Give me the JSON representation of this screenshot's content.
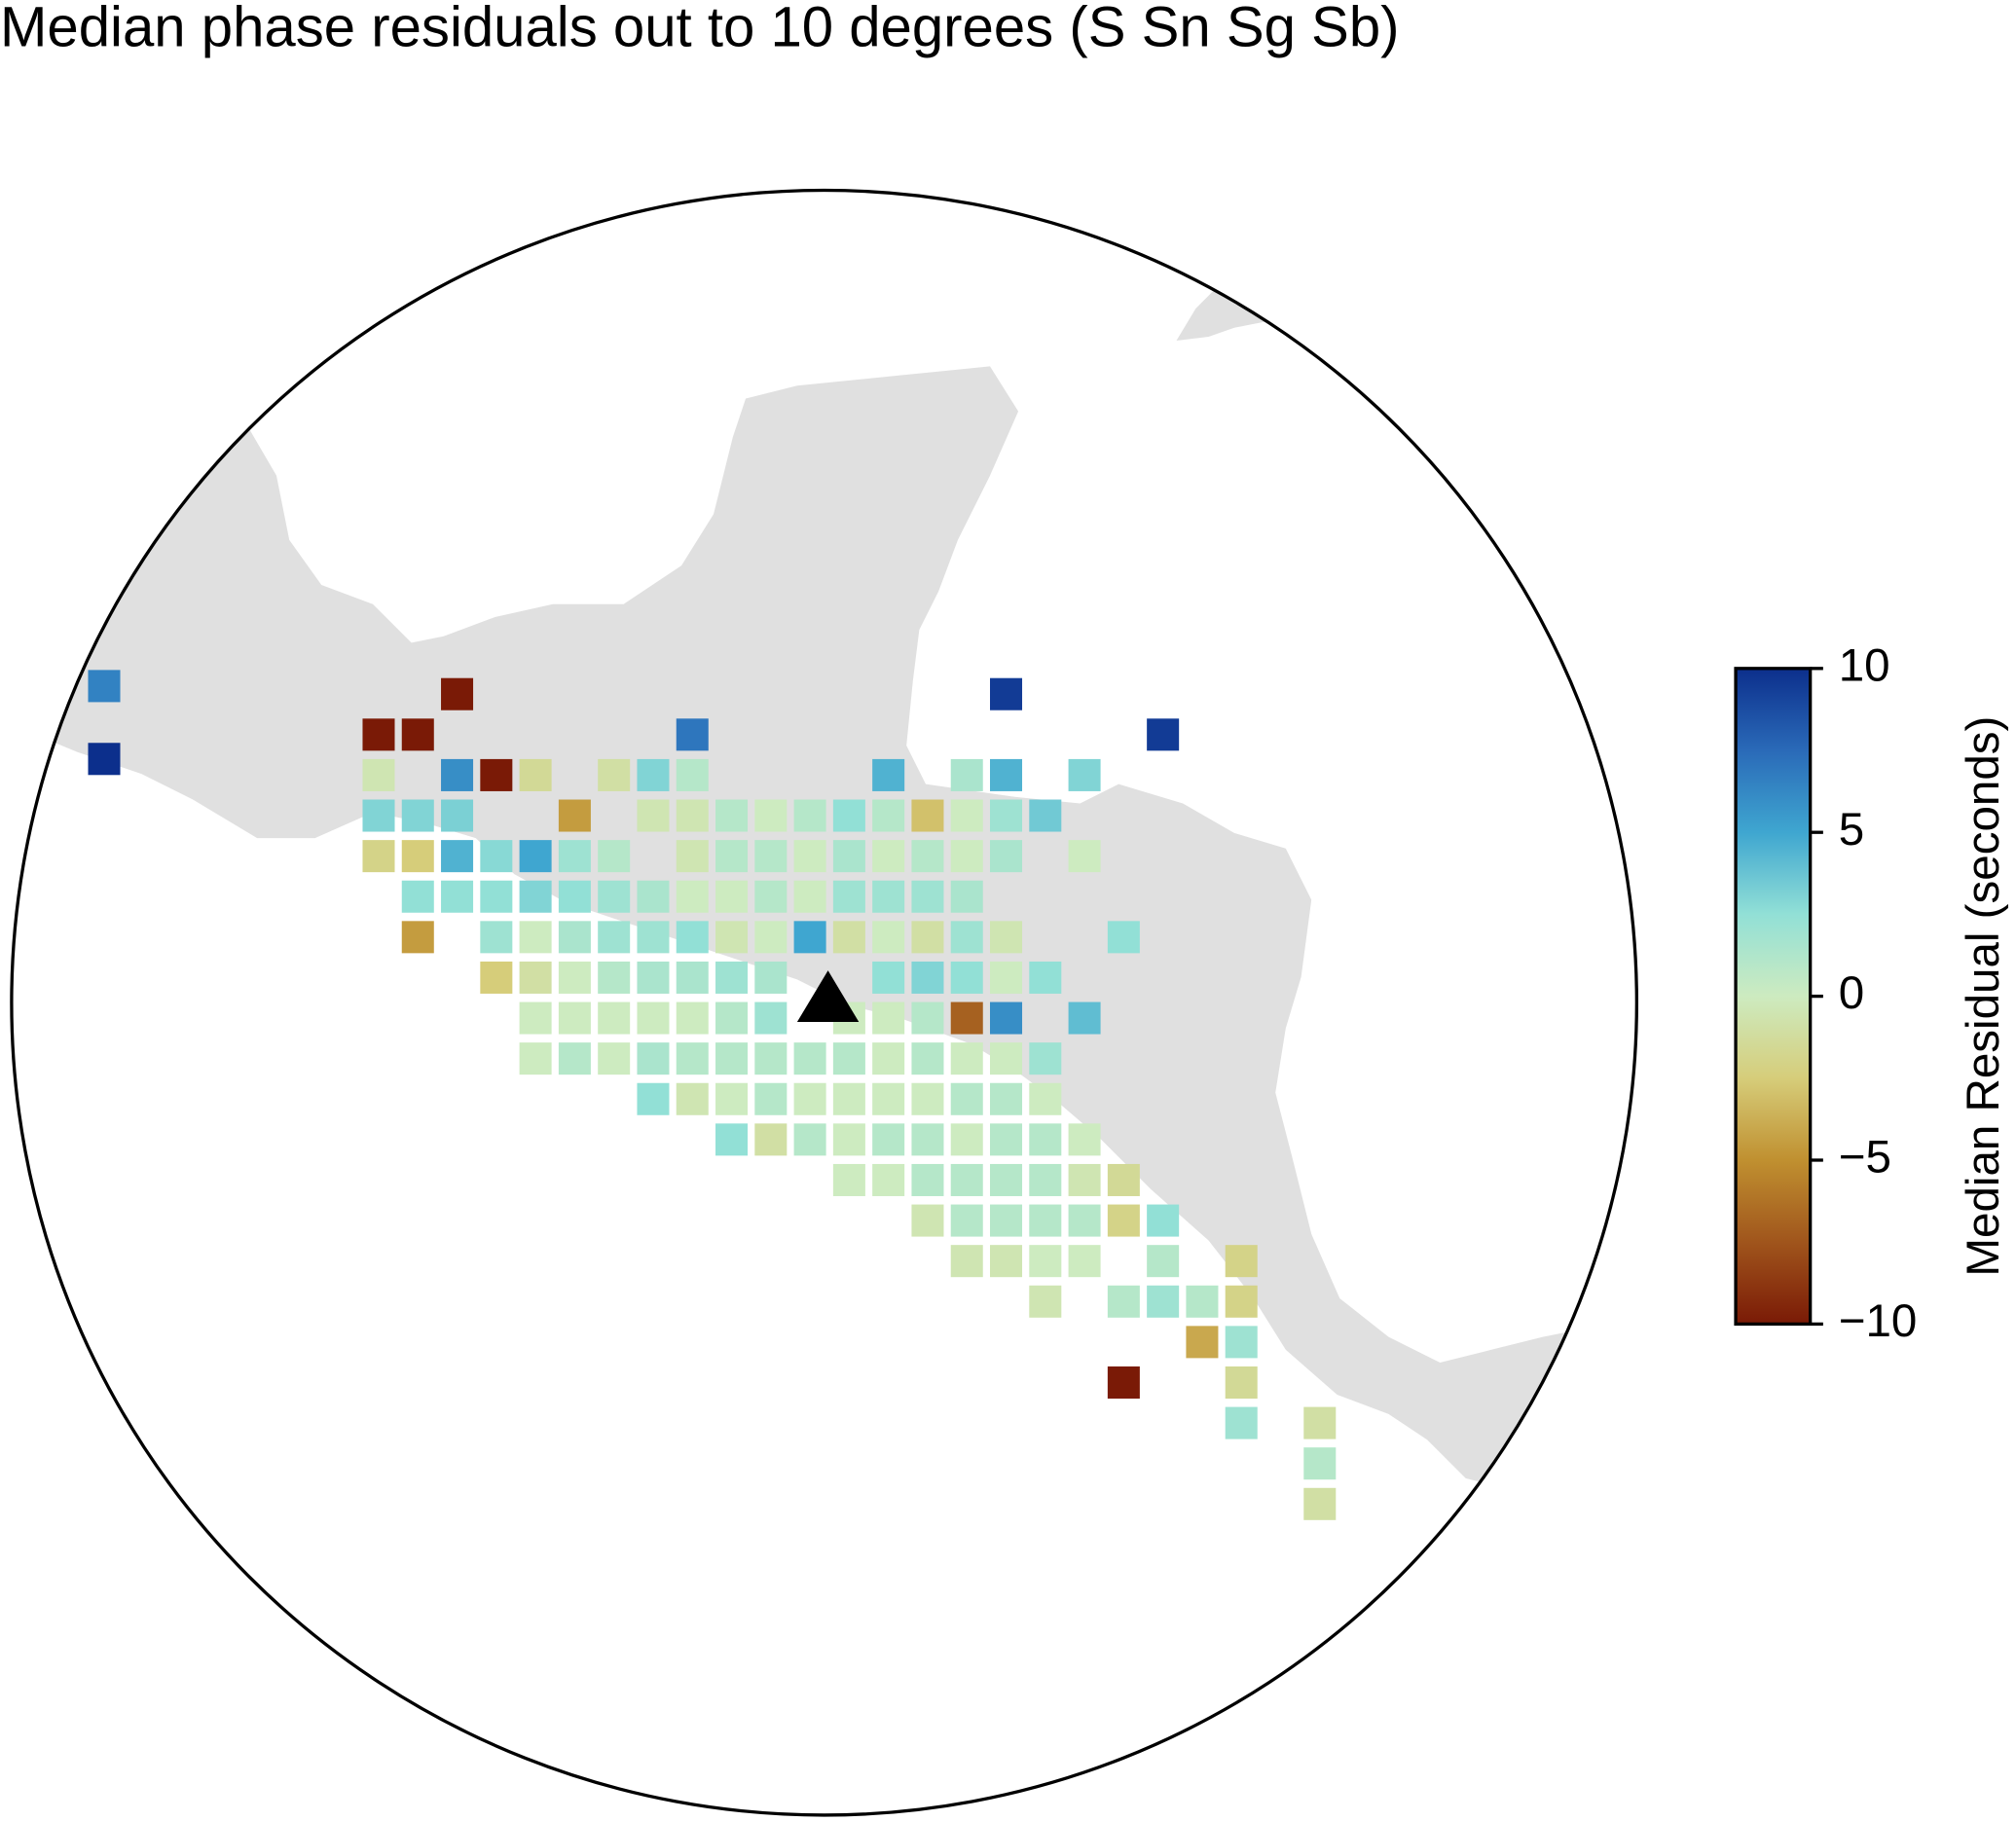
{
  "chart_data": {
    "type": "grid-map",
    "title": "Median phase residuals out to 10 degrees (S Sn Sg Sb)",
    "colorbar": {
      "label": "Median Residual (seconds)",
      "vlim": [
        -10,
        10
      ],
      "ticks": [
        10,
        5,
        0,
        {
          "value": -5,
          "label": "−5"
        },
        {
          "value": -10,
          "label": "−10"
        }
      ],
      "colormap": [
        "#7a1a06",
        "#a0551c",
        "#c09030",
        "#d6cd7a",
        "#cdebc0",
        "#92e0d6",
        "#3fa6d0",
        "#2a6ab8",
        "#0c2f8c"
      ]
    },
    "cells": {
      "lon": [
        -100,
        -95.5,
        -88.5,
        -100,
        -96.5,
        -96,
        -92.5,
        -86.5,
        -96.5,
        -95.5,
        -95,
        -94.5,
        -93.5,
        -93,
        -92.5,
        -90,
        -89,
        -88.5,
        -87.5,
        -96.5,
        -96,
        -95.5,
        -94,
        -93,
        -92.5,
        -92,
        -91.5,
        -91,
        -90.5,
        -90,
        -89.5,
        -89,
        -88.5,
        -88,
        -96.5,
        -96,
        -95.5,
        -95,
        -94.5,
        -94,
        -93.5,
        -92.5,
        -92,
        -91.5,
        -91,
        -90.5,
        -90,
        -89.5,
        -89,
        -88.5,
        -87.5,
        -96,
        -95.5,
        -95,
        -94.5,
        -94,
        -93.5,
        -93,
        -92.5,
        -92,
        -91.5,
        -91,
        -90.5,
        -90,
        -89.5,
        -89,
        -96,
        -95,
        -94.5,
        -94,
        -93.5,
        -93,
        -92.5,
        -92,
        -91.5,
        -91,
        -90.5,
        -90,
        -89.5,
        -89,
        -88.5,
        -87,
        -95,
        -94.5,
        -94,
        -93.5,
        -93,
        -92.5,
        -92,
        -91.5,
        -90,
        -89.5,
        -89,
        -88.5,
        -88,
        -94.5,
        -94,
        -93.5,
        -93,
        -92.5,
        -92,
        -91.5,
        -90.5,
        -90,
        -89.5,
        -89,
        -88.5,
        -87.5,
        -94.5,
        -94,
        -93.5,
        -93,
        -92.5,
        -92,
        -91.5,
        -91,
        -90.5,
        -90,
        -89.5,
        -89,
        -88.5,
        -88,
        -93,
        -92.5,
        -92,
        -91.5,
        -91,
        -90.5,
        -90,
        -89.5,
        -89,
        -88.5,
        -88,
        -92,
        -91.5,
        -91,
        -90.5,
        -90,
        -89.5,
        -89,
        -88.5,
        -88,
        -87.5,
        -90.5,
        -90,
        -89.5,
        -89,
        -88.5,
        -88,
        -87.5,
        -87,
        -89.5,
        -89,
        -88.5,
        -88,
        -87.5,
        -87,
        -86.5,
        -89,
        -88.5,
        -88,
        -87.5,
        -86.5,
        -85.5,
        -88,
        -87,
        -86.5,
        -86,
        -85.5,
        -86,
        -85.5,
        -87,
        -85.5,
        -85.5,
        -84.5,
        -84.5,
        -84.5
      ],
      "lat": [
        18.6,
        18.5,
        18.5,
        17.7,
        18,
        18,
        18,
        18,
        17.5,
        17.5,
        17.5,
        17.5,
        17.5,
        17.5,
        17.5,
        17.5,
        17.5,
        17.5,
        17.5,
        17,
        17,
        17,
        17,
        17,
        17,
        17,
        17,
        17,
        17,
        17,
        17,
        17,
        17,
        17,
        16.5,
        16.5,
        16.5,
        16.5,
        16.5,
        16.5,
        16.5,
        16.5,
        16.5,
        16.5,
        16.5,
        16.5,
        16.5,
        16.5,
        16.5,
        16.5,
        16.5,
        16,
        16,
        16,
        16,
        16,
        16,
        16,
        16,
        16,
        16,
        16,
        16,
        16,
        16,
        16,
        15.5,
        15.5,
        15.5,
        15.5,
        15.5,
        15.5,
        15.5,
        15.5,
        15.5,
        15.5,
        15.5,
        15.5,
        15.5,
        15.5,
        15.5,
        15.5,
        15,
        15,
        15,
        15,
        15,
        15,
        15,
        15,
        15,
        15,
        15,
        15,
        15,
        14.5,
        14.5,
        14.5,
        14.5,
        14.5,
        14.5,
        14.5,
        14.5,
        14.5,
        14.5,
        14.5,
        14.5,
        14.5,
        14,
        14,
        14,
        14,
        14,
        14,
        14,
        14,
        14,
        14,
        14,
        14,
        14,
        14,
        13.5,
        13.5,
        13.5,
        13.5,
        13.5,
        13.5,
        13.5,
        13.5,
        13.5,
        13.5,
        13.5,
        13,
        13,
        13,
        13,
        13,
        13,
        13,
        13,
        13,
        13,
        12.5,
        12.5,
        12.5,
        12.5,
        12.5,
        12.5,
        12.5,
        12.5,
        12,
        12,
        12,
        12,
        12,
        12,
        12,
        11.5,
        11.5,
        11.5,
        11.5,
        11.5,
        11.5,
        11,
        11,
        11,
        11,
        11,
        10.5,
        10.5,
        10,
        10,
        9.5,
        9.5,
        9,
        8.5
      ],
      "values": [
        6.5,
        -10,
        9.5,
        10,
        -10,
        -10,
        7,
        9.5,
        -0.5,
        6,
        -10,
        -1.5,
        -1,
        3,
        1,
        4.5,
        1.5,
        4.5,
        3,
        3,
        3,
        3.2,
        -4.5,
        -0.5,
        -0.5,
        1,
        0,
        1,
        2.5,
        1,
        -3,
        0,
        2,
        3.5,
        -2,
        -2.5,
        4.5,
        2.8,
        5,
        2,
        1,
        -0.5,
        1,
        1,
        0,
        1.5,
        0,
        1,
        0,
        1.5,
        0,
        2.5,
        2.5,
        2.5,
        3,
        2.5,
        2,
        1.5,
        0,
        0,
        1,
        0,
        2,
        2,
        2,
        1.5,
        -4.5,
        2,
        0,
        1.5,
        2,
        2,
        2.5,
        -0.5,
        0,
        5,
        -1,
        0,
        -1,
        2,
        -0.5,
        2.5,
        -2.5,
        -1,
        0,
        1,
        1.5,
        1.5,
        2,
        1.5,
        2.5,
        3,
        2.5,
        0,
        2.5,
        0,
        0,
        0,
        0,
        0,
        1,
        2,
        0,
        0,
        1,
        -7,
        6,
        4,
        0,
        1,
        0,
        1.5,
        1,
        1,
        1,
        1,
        1,
        0,
        1,
        0,
        0,
        2,
        2.5,
        -0.5,
        0,
        1,
        0,
        0,
        0,
        0,
        1,
        1,
        0,
        2.5,
        -1,
        1,
        0,
        1,
        1,
        0,
        1,
        1,
        0,
        0,
        0,
        1,
        1,
        1,
        1,
        -0.5,
        -1.5,
        -0.5,
        1,
        1,
        1,
        1,
        -2,
        2.5,
        -0.5,
        -0.5,
        0,
        0,
        1,
        -2,
        -0.5,
        1,
        2,
        1,
        -2,
        -4,
        2,
        -10,
        -1.5,
        2,
        -1,
        1,
        -1
      ]
    }
  }
}
